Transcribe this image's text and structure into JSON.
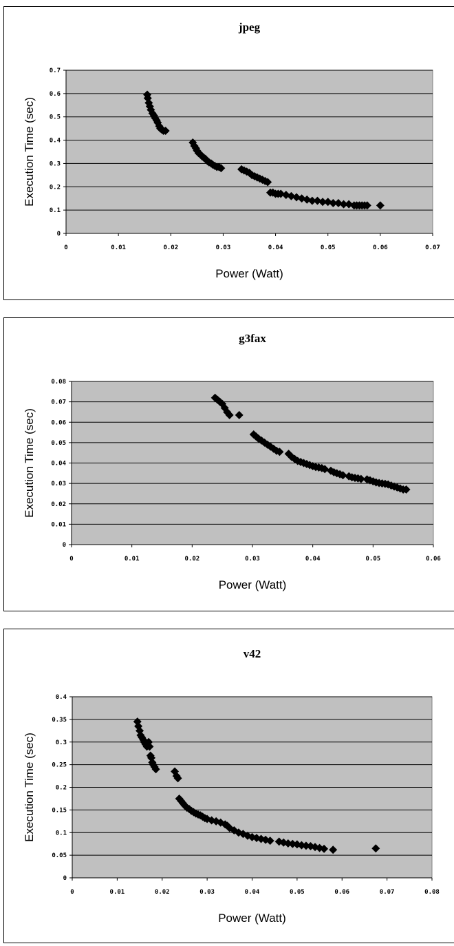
{
  "chart_data": [
    {
      "type": "scatter",
      "title": "jpeg",
      "xlabel": "Power (Watt)",
      "ylabel": "Execution Time (sec)",
      "xlim": [
        0,
        0.07
      ],
      "ylim": [
        0,
        0.7
      ],
      "xticks": [
        "0",
        "0.01",
        "0.02",
        "0.03",
        "0.04",
        "0.05",
        "0.06",
        "0.07"
      ],
      "yticks": [
        "0",
        "0.1",
        "0.2",
        "0.3",
        "0.4",
        "0.5",
        "0.6",
        "0.7"
      ],
      "grid": true,
      "legend": "none",
      "marker_color": "#000000",
      "plot_background": "#c0c0c0",
      "series": [
        {
          "x": [
            0.0155,
            0.0156,
            0.0158,
            0.016,
            0.0162,
            0.0165,
            0.0168,
            0.017,
            0.0173,
            0.0175,
            0.0178,
            0.018,
            0.0183,
            0.0186,
            0.019,
            0.0242,
            0.0245,
            0.0248,
            0.025,
            0.0253,
            0.0256,
            0.026,
            0.0263,
            0.0266,
            0.027,
            0.0273,
            0.0277,
            0.028,
            0.0284,
            0.0288,
            0.0292,
            0.0296,
            0.0335,
            0.034,
            0.0345,
            0.035,
            0.0355,
            0.036,
            0.0365,
            0.037,
            0.0375,
            0.038,
            0.0385,
            0.039,
            0.0395,
            0.04,
            0.0405,
            0.041,
            0.042,
            0.043,
            0.044,
            0.045,
            0.046,
            0.047,
            0.048,
            0.049,
            0.05,
            0.051,
            0.052,
            0.053,
            0.054,
            0.055,
            0.0555,
            0.056,
            0.0565,
            0.057,
            0.0575,
            0.06
          ],
          "y": [
            0.595,
            0.58,
            0.56,
            0.545,
            0.53,
            0.515,
            0.505,
            0.495,
            0.485,
            0.475,
            0.46,
            0.45,
            0.445,
            0.44,
            0.44,
            0.39,
            0.375,
            0.365,
            0.355,
            0.345,
            0.34,
            0.33,
            0.325,
            0.32,
            0.31,
            0.305,
            0.3,
            0.295,
            0.29,
            0.285,
            0.285,
            0.28,
            0.275,
            0.27,
            0.265,
            0.26,
            0.25,
            0.245,
            0.24,
            0.235,
            0.23,
            0.225,
            0.22,
            0.175,
            0.175,
            0.17,
            0.17,
            0.17,
            0.165,
            0.16,
            0.155,
            0.15,
            0.145,
            0.14,
            0.14,
            0.135,
            0.135,
            0.13,
            0.13,
            0.125,
            0.125,
            0.12,
            0.12,
            0.12,
            0.12,
            0.12,
            0.12,
            0.12
          ]
        }
      ]
    },
    {
      "type": "scatter",
      "title": "g3fax",
      "xlabel": "Power (Watt)",
      "ylabel": "Execution Time (sec)",
      "xlim": [
        0,
        0.06
      ],
      "ylim": [
        0,
        0.08
      ],
      "xticks": [
        "0",
        "0.01",
        "0.02",
        "0.03",
        "0.04",
        "0.05",
        "0.06"
      ],
      "yticks": [
        "0",
        "0.01",
        "0.02",
        "0.03",
        "0.04",
        "0.05",
        "0.06",
        "0.07",
        "0.08"
      ],
      "grid": true,
      "legend": "none",
      "marker_color": "#000000",
      "plot_background": "#c0c0c0",
      "series": [
        {
          "x": [
            0.0238,
            0.0242,
            0.0246,
            0.025,
            0.0254,
            0.0258,
            0.0262,
            0.0278,
            0.0302,
            0.0306,
            0.031,
            0.0315,
            0.032,
            0.0325,
            0.033,
            0.0335,
            0.034,
            0.0345,
            0.036,
            0.0365,
            0.037,
            0.0375,
            0.038,
            0.0385,
            0.039,
            0.0395,
            0.04,
            0.0405,
            0.041,
            0.0415,
            0.042,
            0.043,
            0.0435,
            0.044,
            0.0445,
            0.045,
            0.046,
            0.0465,
            0.047,
            0.0475,
            0.048,
            0.049,
            0.0495,
            0.05,
            0.0505,
            0.051,
            0.0515,
            0.052,
            0.0525,
            0.053,
            0.0535,
            0.054,
            0.0545,
            0.055,
            0.0555
          ],
          "y": [
            0.072,
            0.071,
            0.07,
            0.069,
            0.067,
            0.065,
            0.0635,
            0.0635,
            0.054,
            0.053,
            0.052,
            0.051,
            0.05,
            0.049,
            0.048,
            0.047,
            0.046,
            0.0455,
            0.0445,
            0.043,
            0.042,
            0.041,
            0.0405,
            0.04,
            0.0395,
            0.039,
            0.0385,
            0.038,
            0.0378,
            0.0375,
            0.037,
            0.0362,
            0.0355,
            0.035,
            0.0345,
            0.034,
            0.0335,
            0.033,
            0.0327,
            0.0325,
            0.0322,
            0.032,
            0.0315,
            0.031,
            0.0305,
            0.0302,
            0.03,
            0.0298,
            0.0295,
            0.029,
            0.0285,
            0.028,
            0.0275,
            0.027,
            0.027
          ]
        }
      ]
    },
    {
      "type": "scatter",
      "title": "v42",
      "xlabel": "Power (Watt)",
      "ylabel": "Execution Time (sec)",
      "xlim": [
        0,
        0.08
      ],
      "ylim": [
        0,
        0.4
      ],
      "xticks": [
        "0",
        "0.01",
        "0.02",
        "0.03",
        "0.04",
        "0.05",
        "0.06",
        "0.07",
        "0.08"
      ],
      "yticks": [
        "0",
        "0.05",
        "0.1",
        "0.15",
        "0.2",
        "0.25",
        "0.3",
        "0.35",
        "0.4"
      ],
      "grid": true,
      "legend": "none",
      "marker_color": "#000000",
      "plot_background": "#c0c0c0",
      "series": [
        {
          "x": [
            0.0145,
            0.0147,
            0.015,
            0.0152,
            0.0155,
            0.0158,
            0.016,
            0.0163,
            0.0166,
            0.017,
            0.0172,
            0.0174,
            0.0176,
            0.0178,
            0.018,
            0.0183,
            0.0186,
            0.0228,
            0.0232,
            0.0235,
            0.0238,
            0.0242,
            0.0246,
            0.025,
            0.0255,
            0.026,
            0.0265,
            0.027,
            0.0275,
            0.028,
            0.0285,
            0.029,
            0.0295,
            0.03,
            0.031,
            0.032,
            0.033,
            0.034,
            0.0345,
            0.035,
            0.036,
            0.037,
            0.038,
            0.039,
            0.04,
            0.041,
            0.042,
            0.043,
            0.044,
            0.046,
            0.047,
            0.048,
            0.049,
            0.05,
            0.051,
            0.052,
            0.053,
            0.054,
            0.055,
            0.056,
            0.058,
            0.0675
          ],
          "y": [
            0.345,
            0.335,
            0.325,
            0.315,
            0.31,
            0.305,
            0.3,
            0.295,
            0.29,
            0.3,
            0.29,
            0.27,
            0.265,
            0.255,
            0.25,
            0.245,
            0.24,
            0.235,
            0.225,
            0.22,
            0.175,
            0.17,
            0.165,
            0.16,
            0.155,
            0.152,
            0.148,
            0.145,
            0.142,
            0.14,
            0.138,
            0.135,
            0.132,
            0.13,
            0.127,
            0.125,
            0.122,
            0.118,
            0.115,
            0.11,
            0.105,
            0.1,
            0.097,
            0.093,
            0.09,
            0.088,
            0.086,
            0.084,
            0.082,
            0.08,
            0.078,
            0.076,
            0.075,
            0.074,
            0.072,
            0.071,
            0.07,
            0.068,
            0.066,
            0.064,
            0.062,
            0.065
          ]
        }
      ]
    }
  ]
}
